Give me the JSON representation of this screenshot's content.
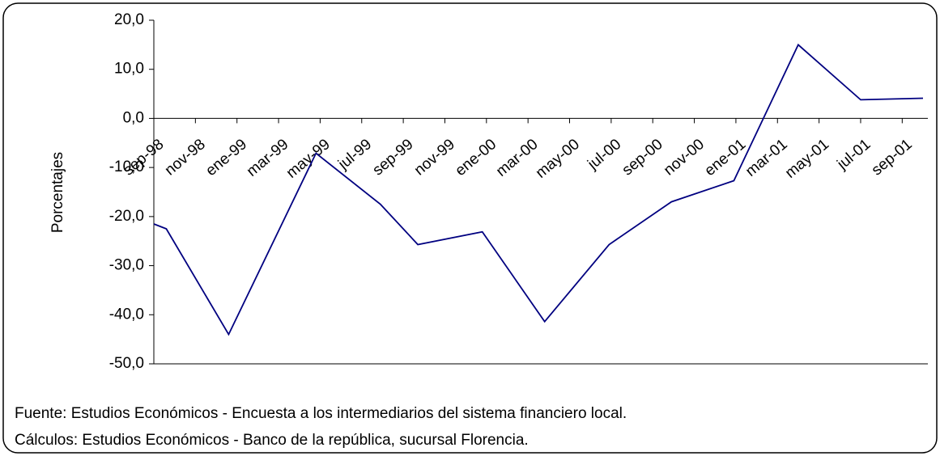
{
  "chart_data": {
    "type": "line",
    "y_label": "Porcentajes",
    "notes": [
      "Fuente:  Estudios Económicos - Encuesta a los intermediarios del sistema financiero local.",
      "Cálculos:  Estudios Económicos - Banco de la república, sucursal Florencia."
    ],
    "x": [
      0,
      0.6,
      3.6,
      7.8,
      10.9,
      12.7,
      15.8,
      18.8,
      21.9,
      24.9,
      27.9,
      31,
      34,
      37
    ],
    "xlim": [
      0,
      37
    ],
    "xticks": [
      {
        "value": 0,
        "label": "sep-98"
      },
      {
        "value": 2,
        "label": "nov-98"
      },
      {
        "value": 4,
        "label": "ene-99"
      },
      {
        "value": 6,
        "label": "mar-99"
      },
      {
        "value": 8,
        "label": "may-99"
      },
      {
        "value": 10,
        "label": "jul-99"
      },
      {
        "value": 12,
        "label": "sep-99"
      },
      {
        "value": 14,
        "label": "nov-99"
      },
      {
        "value": 16,
        "label": "ene-00"
      },
      {
        "value": 18,
        "label": "mar-00"
      },
      {
        "value": 20,
        "label": "may-00"
      },
      {
        "value": 22,
        "label": "jul-00"
      },
      {
        "value": 24,
        "label": "sep-00"
      },
      {
        "value": 26,
        "label": "nov-00"
      },
      {
        "value": 28,
        "label": "ene-01"
      },
      {
        "value": 30,
        "label": "mar-01"
      },
      {
        "value": 32,
        "label": "may-01"
      },
      {
        "value": 34,
        "label": "jul-01"
      },
      {
        "value": 36,
        "label": "sep-01"
      }
    ],
    "values": [
      -21.5,
      -22.5,
      -44.0,
      -7.1,
      -17.5,
      -25.7,
      -23.1,
      -41.4,
      -25.7,
      -17.0,
      -12.7,
      15.0,
      3.8,
      4.1
    ],
    "color": "#000080",
    "ylim": [
      -50,
      20
    ],
    "yticks": [
      {
        "value": -50,
        "label": "-50,0"
      },
      {
        "value": -40,
        "label": "-40,0"
      },
      {
        "value": -30,
        "label": "-30,0"
      },
      {
        "value": -20,
        "label": "-20,0"
      },
      {
        "value": -10,
        "label": "-10,0"
      },
      {
        "value": 0,
        "label": "0,0"
      },
      {
        "value": 10,
        "label": "10,0"
      },
      {
        "value": 20,
        "label": "20,0"
      }
    ]
  }
}
